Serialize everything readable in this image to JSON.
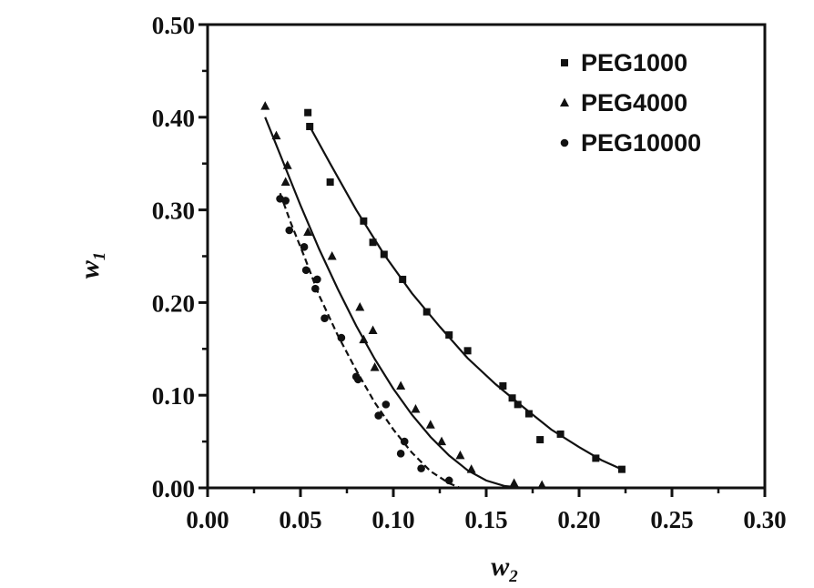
{
  "chart_data": {
    "type": "scatter",
    "xlabel": "w",
    "xlabel_sub": "2",
    "ylabel": "w",
    "ylabel_sub": "1",
    "xlim": [
      0.0,
      0.3
    ],
    "ylim": [
      0.0,
      0.5
    ],
    "x_ticks": [
      "0.00",
      "0.05",
      "0.10",
      "0.15",
      "0.20",
      "0.25",
      "0.30"
    ],
    "y_ticks": [
      "0.00",
      "0.10",
      "0.20",
      "0.30",
      "0.40",
      "0.50"
    ],
    "x_tick_values": [
      0.0,
      0.05,
      0.1,
      0.15,
      0.2,
      0.25,
      0.3
    ],
    "y_tick_values": [
      0.0,
      0.1,
      0.2,
      0.3,
      0.4,
      0.5
    ],
    "legend_position": "top-right",
    "grid": false,
    "series": [
      {
        "name": "PEG1000",
        "marker": "square",
        "line": "solid",
        "points": [
          [
            0.054,
            0.405
          ],
          [
            0.055,
            0.39
          ],
          [
            0.066,
            0.33
          ],
          [
            0.084,
            0.288
          ],
          [
            0.089,
            0.265
          ],
          [
            0.095,
            0.252
          ],
          [
            0.105,
            0.225
          ],
          [
            0.118,
            0.19
          ],
          [
            0.13,
            0.165
          ],
          [
            0.14,
            0.148
          ],
          [
            0.159,
            0.11
          ],
          [
            0.164,
            0.097
          ],
          [
            0.167,
            0.09
          ],
          [
            0.173,
            0.08
          ],
          [
            0.179,
            0.052
          ],
          [
            0.19,
            0.058
          ],
          [
            0.209,
            0.032
          ],
          [
            0.223,
            0.02
          ]
        ],
        "fit": [
          [
            0.055,
            0.39
          ],
          [
            0.066,
            0.35
          ],
          [
            0.08,
            0.3
          ],
          [
            0.095,
            0.252
          ],
          [
            0.11,
            0.21
          ],
          [
            0.125,
            0.174
          ],
          [
            0.14,
            0.14
          ],
          [
            0.155,
            0.112
          ],
          [
            0.17,
            0.087
          ],
          [
            0.185,
            0.063
          ],
          [
            0.2,
            0.044
          ],
          [
            0.212,
            0.03
          ],
          [
            0.223,
            0.02
          ]
        ]
      },
      {
        "name": "PEG4000",
        "marker": "triangle",
        "line": "solid",
        "points": [
          [
            0.031,
            0.412
          ],
          [
            0.037,
            0.38
          ],
          [
            0.043,
            0.348
          ],
          [
            0.042,
            0.33
          ],
          [
            0.054,
            0.276
          ],
          [
            0.067,
            0.25
          ],
          [
            0.082,
            0.195
          ],
          [
            0.089,
            0.17
          ],
          [
            0.084,
            0.16
          ],
          [
            0.09,
            0.13
          ],
          [
            0.104,
            0.11
          ],
          [
            0.112,
            0.085
          ],
          [
            0.12,
            0.068
          ],
          [
            0.126,
            0.05
          ],
          [
            0.136,
            0.035
          ],
          [
            0.142,
            0.02
          ],
          [
            0.165,
            0.005
          ],
          [
            0.18,
            0.003
          ]
        ],
        "fit": [
          [
            0.031,
            0.4
          ],
          [
            0.04,
            0.355
          ],
          [
            0.05,
            0.305
          ],
          [
            0.06,
            0.258
          ],
          [
            0.07,
            0.215
          ],
          [
            0.08,
            0.175
          ],
          [
            0.09,
            0.139
          ],
          [
            0.1,
            0.107
          ],
          [
            0.11,
            0.079
          ],
          [
            0.12,
            0.055
          ],
          [
            0.13,
            0.035
          ],
          [
            0.14,
            0.019
          ],
          [
            0.15,
            0.008
          ],
          [
            0.16,
            0.002
          ],
          [
            0.17,
            0.0
          ]
        ]
      },
      {
        "name": "PEG10000",
        "marker": "circle",
        "line": "dashed",
        "points": [
          [
            0.039,
            0.312
          ],
          [
            0.042,
            0.31
          ],
          [
            0.044,
            0.278
          ],
          [
            0.052,
            0.26
          ],
          [
            0.053,
            0.235
          ],
          [
            0.058,
            0.215
          ],
          [
            0.059,
            0.225
          ],
          [
            0.063,
            0.183
          ],
          [
            0.072,
            0.162
          ],
          [
            0.08,
            0.12
          ],
          [
            0.081,
            0.117
          ],
          [
            0.092,
            0.078
          ],
          [
            0.096,
            0.09
          ],
          [
            0.104,
            0.037
          ],
          [
            0.106,
            0.05
          ],
          [
            0.115,
            0.021
          ],
          [
            0.13,
            0.008
          ]
        ],
        "fit": [
          [
            0.039,
            0.318
          ],
          [
            0.045,
            0.285
          ],
          [
            0.052,
            0.25
          ],
          [
            0.06,
            0.208
          ],
          [
            0.07,
            0.165
          ],
          [
            0.08,
            0.127
          ],
          [
            0.09,
            0.092
          ],
          [
            0.1,
            0.063
          ],
          [
            0.11,
            0.038
          ],
          [
            0.12,
            0.018
          ],
          [
            0.13,
            0.005
          ],
          [
            0.136,
            0.0
          ]
        ]
      }
    ]
  }
}
